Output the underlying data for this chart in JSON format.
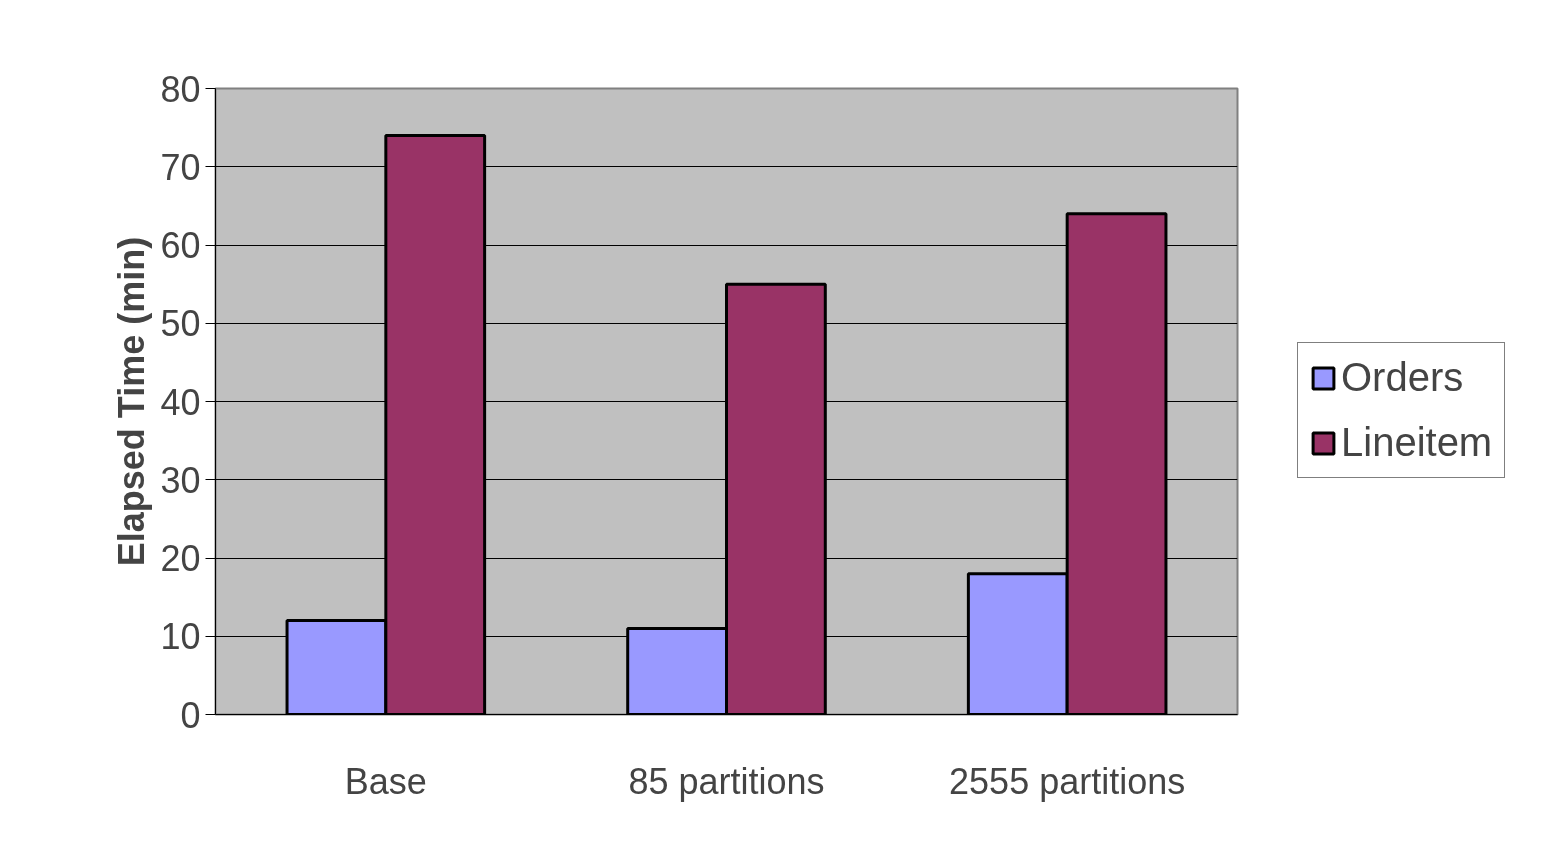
{
  "chart_data": {
    "type": "bar",
    "ylabel": "Elapsed Time (min)",
    "categories": [
      "Base",
      "85 partitions",
      "2555 partitions"
    ],
    "series": [
      {
        "name": "Orders",
        "color": "#9999ff",
        "values": [
          12,
          11,
          18
        ]
      },
      {
        "name": "Lineitem",
        "color": "#993366",
        "values": [
          74,
          55,
          64
        ]
      }
    ],
    "ylim": [
      0,
      80
    ],
    "yticks": [
      0,
      10,
      20,
      30,
      40,
      50,
      60,
      70,
      80
    ],
    "grid": "y",
    "legend": "right"
  }
}
